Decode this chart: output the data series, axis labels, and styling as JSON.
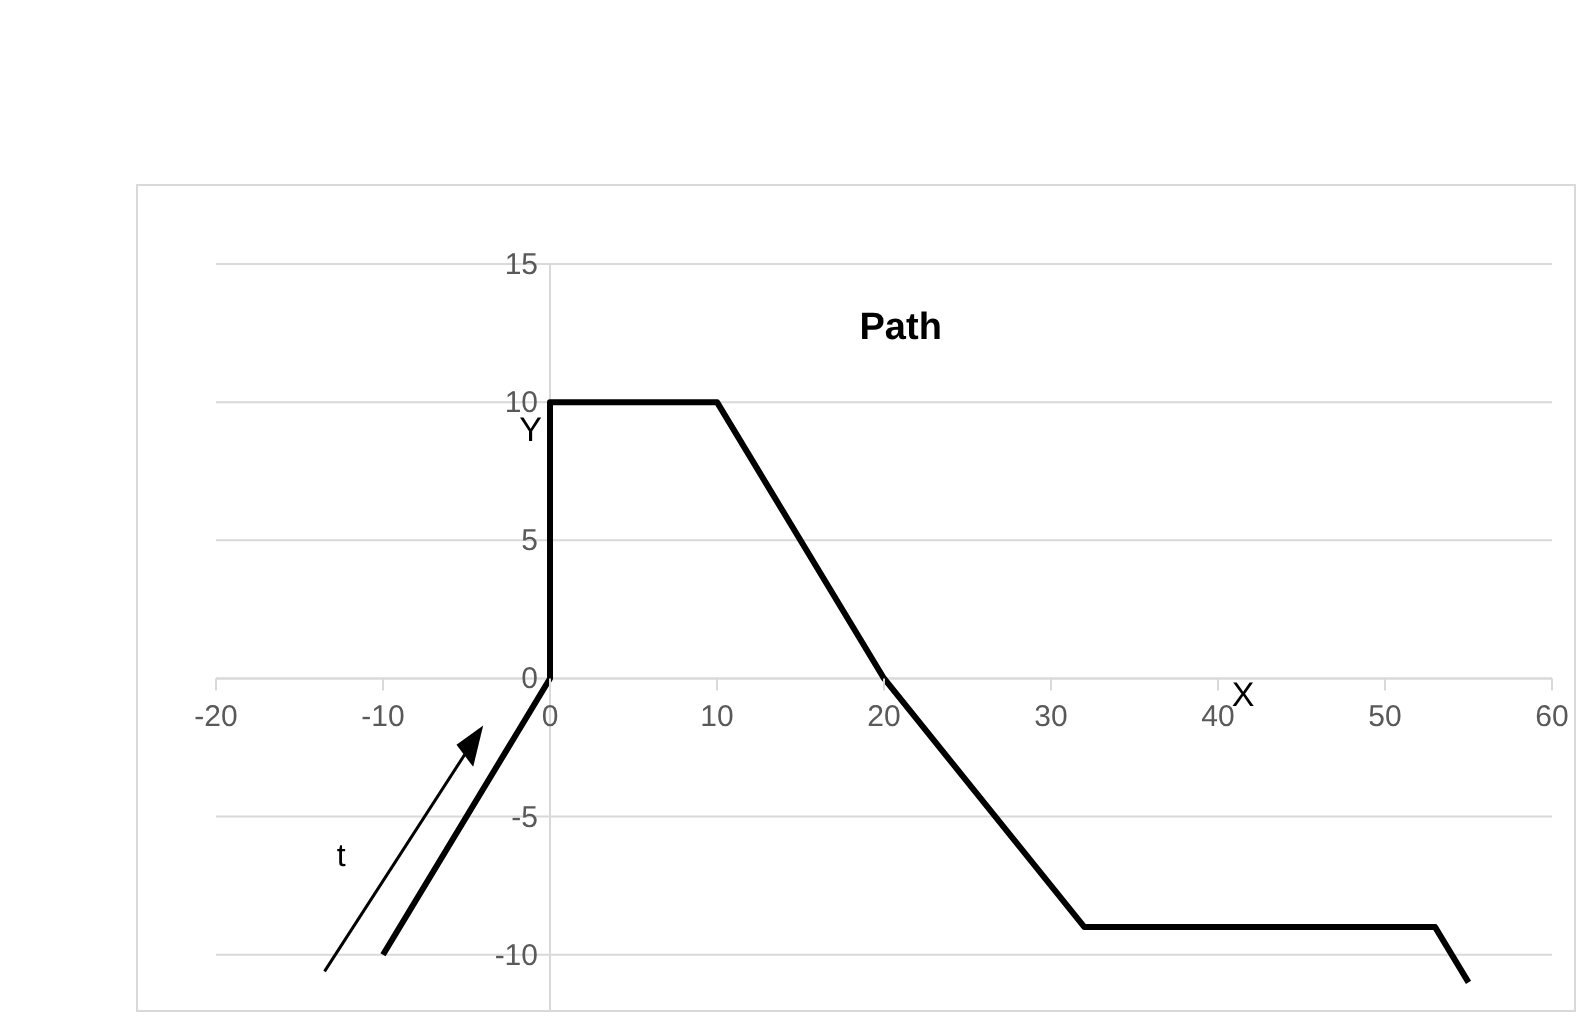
{
  "chart_data": {
    "type": "line",
    "title": "Path",
    "xlabel": "X",
    "ylabel": "Y",
    "annotations": [
      "t"
    ],
    "x": [
      -10,
      0,
      0,
      10,
      20,
      32,
      53,
      55
    ],
    "series": [
      {
        "color": "#000000",
        "values": [
          -10,
          0,
          10,
          10,
          0,
          -9,
          -9,
          -11
        ]
      }
    ],
    "xlim": [
      -20,
      60
    ],
    "xticks": [
      -20,
      -10,
      0,
      10,
      20,
      30,
      40,
      50,
      60
    ],
    "ylim": [
      -12,
      15
    ],
    "yticks": [
      -10,
      -5,
      0,
      5,
      10,
      15
    ],
    "grid": "y",
    "legend": false,
    "marker": "none",
    "line_style": "solid"
  }
}
